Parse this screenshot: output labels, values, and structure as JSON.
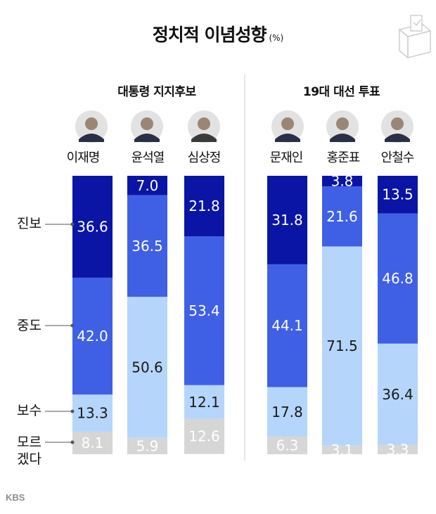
{
  "title": "정치적 이념성향",
  "unit": "(%)",
  "groups": [
    "대통령 지지후보",
    "19대 대선 투표"
  ],
  "row_labels": [
    "진보",
    "중도",
    "보수",
    "모르\n겠다"
  ],
  "logo": "KBS",
  "colors": {
    "진보": "#0a15a6",
    "중도": "#3f5fe5",
    "보수": "#b5d5fb",
    "모르겠다": "#d6d6d6"
  },
  "chart_data": {
    "type": "bar",
    "stacked": true,
    "orientation": "vertical",
    "categories": [
      "이재명",
      "윤석열",
      "심상정",
      "문재인",
      "홍준표",
      "안철수"
    ],
    "series": [
      {
        "name": "진보",
        "values": [
          36.6,
          7.0,
          21.8,
          31.8,
          3.8,
          13.5
        ]
      },
      {
        "name": "중도",
        "values": [
          42.0,
          36.5,
          53.4,
          44.1,
          21.6,
          46.8
        ]
      },
      {
        "name": "보수",
        "values": [
          13.3,
          50.6,
          12.1,
          17.8,
          71.5,
          36.4
        ]
      },
      {
        "name": "모르겠다",
        "values": [
          8.1,
          5.9,
          12.6,
          6.3,
          3.1,
          3.3
        ]
      }
    ]
  }
}
